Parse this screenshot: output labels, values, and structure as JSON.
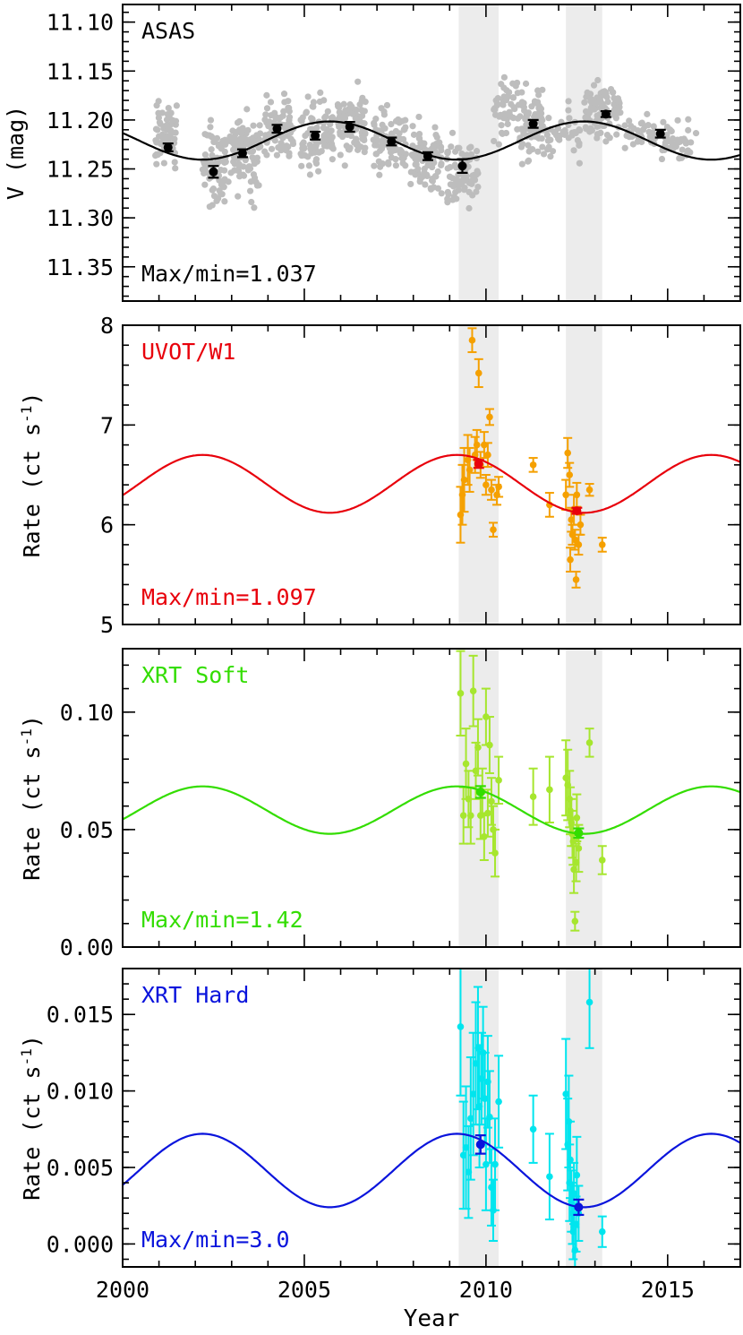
{
  "figure": {
    "xlabel": "Year",
    "xticks": [
      2000,
      2005,
      2010,
      2015
    ],
    "shaded_intervals": [
      [
        2009.25,
        2010.35
      ],
      [
        2012.2,
        2013.2
      ]
    ]
  },
  "chart_data": [
    {
      "type": "scatter",
      "label": "ASAS",
      "ratio_text": "Max/min=1.037",
      "ylabel": "V (mag)",
      "yticks": [
        "11.10",
        "11.15",
        "11.20",
        "11.25",
        "11.30",
        "11.35"
      ],
      "ylim": [
        11.385,
        11.082
      ],
      "xlim": [
        2000,
        2017
      ],
      "colors": {
        "label": "#000000",
        "raw": "#bdbdbd",
        "binned": "#000000",
        "model": "#000000"
      },
      "model": {
        "mean": 11.221,
        "amplitude": 0.0195,
        "period": 7.0,
        "peak_year": 2005.7
      },
      "raw_seasons": [
        {
          "x0": 2000.9,
          "x1": 2001.5,
          "center": 11.215,
          "spread": 0.06,
          "n": 60
        },
        {
          "x0": 2002.2,
          "x1": 2002.85,
          "center": 11.245,
          "spread": 0.075,
          "n": 70
        },
        {
          "x0": 2002.9,
          "x1": 2003.8,
          "center": 11.235,
          "spread": 0.07,
          "n": 90
        },
        {
          "x0": 2003.9,
          "x1": 2004.7,
          "center": 11.21,
          "spread": 0.06,
          "n": 80
        },
        {
          "x0": 2004.9,
          "x1": 2005.8,
          "center": 11.215,
          "spread": 0.06,
          "n": 90
        },
        {
          "x0": 2005.9,
          "x1": 2006.7,
          "center": 11.205,
          "spread": 0.06,
          "n": 90
        },
        {
          "x0": 2006.9,
          "x1": 2007.8,
          "center": 11.22,
          "spread": 0.055,
          "n": 90
        },
        {
          "x0": 2007.9,
          "x1": 2008.8,
          "center": 11.24,
          "spread": 0.06,
          "n": 90
        },
        {
          "x0": 2008.9,
          "x1": 2009.8,
          "center": 11.25,
          "spread": 0.055,
          "n": 80
        },
        {
          "x0": 2010.2,
          "x1": 2010.9,
          "center": 11.19,
          "spread": 0.05,
          "n": 50
        },
        {
          "x0": 2010.9,
          "x1": 2011.6,
          "center": 11.205,
          "spread": 0.06,
          "n": 80
        },
        {
          "x0": 2011.6,
          "x1": 2012.6,
          "center": 11.215,
          "spread": 0.045,
          "n": 40
        },
        {
          "x0": 2012.7,
          "x1": 2013.7,
          "center": 11.19,
          "spread": 0.045,
          "n": 90
        },
        {
          "x0": 2013.8,
          "x1": 2014.7,
          "center": 11.215,
          "spread": 0.025,
          "n": 35
        },
        {
          "x0": 2014.8,
          "x1": 2015.8,
          "center": 11.22,
          "spread": 0.035,
          "n": 40
        }
      ],
      "binned": [
        {
          "x": 2001.25,
          "y": 11.228,
          "err": 0.004
        },
        {
          "x": 2002.5,
          "y": 11.253,
          "err": 0.006
        },
        {
          "x": 2003.3,
          "y": 11.234,
          "err": 0.004
        },
        {
          "x": 2004.25,
          "y": 11.209,
          "err": 0.004
        },
        {
          "x": 2005.3,
          "y": 11.216,
          "err": 0.004
        },
        {
          "x": 2006.25,
          "y": 11.207,
          "err": 0.005
        },
        {
          "x": 2007.4,
          "y": 11.222,
          "err": 0.004
        },
        {
          "x": 2008.4,
          "y": 11.237,
          "err": 0.004
        },
        {
          "x": 2009.35,
          "y": 11.247,
          "err": 0.007
        },
        {
          "x": 2011.3,
          "y": 11.204,
          "err": 0.004
        },
        {
          "x": 2013.3,
          "y": 11.194,
          "err": 0.003
        },
        {
          "x": 2014.8,
          "y": 11.214,
          "err": 0.004
        }
      ]
    },
    {
      "type": "scatter",
      "label": "UVOT/W1",
      "ratio_text": "Max/min=1.097",
      "ylabel": "Rate (ct s",
      "ylabel_sup": "-1",
      "ylabel_end": ")",
      "yticks": [
        "5",
        "6",
        "7",
        "8"
      ],
      "ylim": [
        5,
        8
      ],
      "xlim": [
        2000,
        2017
      ],
      "colors": {
        "label": "#e8000b",
        "raw": "#f5a000",
        "binned": "#e8000b",
        "model": "#e8000b"
      },
      "model": {
        "mean": 6.41,
        "amplitude": 0.29,
        "period": 7.0,
        "peak_year": 2002.2
      },
      "points": [
        {
          "x": 2009.3,
          "y": 6.1,
          "err": 0.28
        },
        {
          "x": 2009.35,
          "y": 6.3,
          "err": 0.3
        },
        {
          "x": 2009.4,
          "y": 6.45,
          "err": 0.32
        },
        {
          "x": 2009.5,
          "y": 6.65,
          "err": 0.25
        },
        {
          "x": 2009.55,
          "y": 6.55,
          "err": 0.22
        },
        {
          "x": 2009.62,
          "y": 7.85,
          "err": 0.12
        },
        {
          "x": 2009.7,
          "y": 6.7,
          "err": 0.18
        },
        {
          "x": 2009.75,
          "y": 6.8,
          "err": 0.15
        },
        {
          "x": 2009.8,
          "y": 7.52,
          "err": 0.14
        },
        {
          "x": 2009.85,
          "y": 6.6,
          "err": 0.13
        },
        {
          "x": 2009.95,
          "y": 6.8,
          "err": 0.13
        },
        {
          "x": 2010.0,
          "y": 6.4,
          "err": 0.1
        },
        {
          "x": 2010.05,
          "y": 6.7,
          "err": 0.12
        },
        {
          "x": 2010.1,
          "y": 7.08,
          "err": 0.08
        },
        {
          "x": 2010.15,
          "y": 6.35,
          "err": 0.1
        },
        {
          "x": 2010.2,
          "y": 5.95,
          "err": 0.07
        },
        {
          "x": 2010.3,
          "y": 6.3,
          "err": 0.1
        },
        {
          "x": 2010.35,
          "y": 6.38,
          "err": 0.1
        },
        {
          "x": 2011.3,
          "y": 6.6,
          "err": 0.07
        },
        {
          "x": 2011.75,
          "y": 6.2,
          "err": 0.12
        },
        {
          "x": 2012.2,
          "y": 6.3,
          "err": 0.15
        },
        {
          "x": 2012.25,
          "y": 6.72,
          "err": 0.15
        },
        {
          "x": 2012.3,
          "y": 6.5,
          "err": 0.12
        },
        {
          "x": 2012.32,
          "y": 5.65,
          "err": 0.12
        },
        {
          "x": 2012.35,
          "y": 6.05,
          "err": 0.12
        },
        {
          "x": 2012.38,
          "y": 5.9,
          "err": 0.1
        },
        {
          "x": 2012.42,
          "y": 6.15,
          "err": 0.15
        },
        {
          "x": 2012.45,
          "y": 5.85,
          "err": 0.1
        },
        {
          "x": 2012.48,
          "y": 5.45,
          "err": 0.08
        },
        {
          "x": 2012.5,
          "y": 6.3,
          "err": 0.12
        },
        {
          "x": 2012.55,
          "y": 5.8,
          "err": 0.1
        },
        {
          "x": 2012.6,
          "y": 6.0,
          "err": 0.1
        },
        {
          "x": 2012.85,
          "y": 6.35,
          "err": 0.06
        },
        {
          "x": 2013.2,
          "y": 5.8,
          "err": 0.07
        }
      ],
      "binned": [
        {
          "x": 2009.8,
          "y": 6.61,
          "err": 0.04
        },
        {
          "x": 2012.5,
          "y": 6.14,
          "err": 0.03
        }
      ]
    },
    {
      "type": "scatter",
      "label": "XRT Soft",
      "ratio_text": "Max/min=1.42",
      "ylabel": "Rate (ct s",
      "ylabel_sup": "-1",
      "ylabel_end": ")",
      "yticks": [
        "0.00",
        "0.05",
        "0.10"
      ],
      "ylim": [
        0,
        0.127
      ],
      "xlim": [
        2000,
        2017
      ],
      "colors": {
        "label": "#33dd00",
        "raw": "#a6e62e",
        "binned": "#33dd00",
        "model": "#33dd00"
      },
      "model": {
        "mean": 0.0583,
        "amplitude": 0.0101,
        "period": 7.0,
        "peak_year": 2002.2
      },
      "points": [
        {
          "x": 2009.3,
          "y": 0.108,
          "err": 0.018
        },
        {
          "x": 2009.38,
          "y": 0.056,
          "err": 0.012
        },
        {
          "x": 2009.45,
          "y": 0.078,
          "err": 0.015
        },
        {
          "x": 2009.52,
          "y": 0.063,
          "err": 0.012
        },
        {
          "x": 2009.58,
          "y": 0.056,
          "err": 0.012
        },
        {
          "x": 2009.65,
          "y": 0.109,
          "err": 0.015
        },
        {
          "x": 2009.72,
          "y": 0.075,
          "err": 0.012
        },
        {
          "x": 2009.78,
          "y": 0.085,
          "err": 0.012
        },
        {
          "x": 2009.85,
          "y": 0.056,
          "err": 0.01
        },
        {
          "x": 2009.9,
          "y": 0.066,
          "err": 0.01
        },
        {
          "x": 2009.95,
          "y": 0.047,
          "err": 0.01
        },
        {
          "x": 2010.0,
          "y": 0.098,
          "err": 0.012
        },
        {
          "x": 2010.05,
          "y": 0.057,
          "err": 0.01
        },
        {
          "x": 2010.1,
          "y": 0.086,
          "err": 0.012
        },
        {
          "x": 2010.15,
          "y": 0.062,
          "err": 0.01
        },
        {
          "x": 2010.2,
          "y": 0.05,
          "err": 0.01
        },
        {
          "x": 2010.25,
          "y": 0.04,
          "err": 0.01
        },
        {
          "x": 2010.35,
          "y": 0.071,
          "err": 0.01
        },
        {
          "x": 2011.3,
          "y": 0.064,
          "err": 0.012
        },
        {
          "x": 2011.75,
          "y": 0.067,
          "err": 0.014
        },
        {
          "x": 2012.2,
          "y": 0.072,
          "err": 0.016
        },
        {
          "x": 2012.25,
          "y": 0.069,
          "err": 0.015
        },
        {
          "x": 2012.3,
          "y": 0.063,
          "err": 0.012
        },
        {
          "x": 2012.32,
          "y": 0.058,
          "err": 0.01
        },
        {
          "x": 2012.35,
          "y": 0.053,
          "err": 0.01
        },
        {
          "x": 2012.38,
          "y": 0.048,
          "err": 0.01
        },
        {
          "x": 2012.4,
          "y": 0.045,
          "err": 0.01
        },
        {
          "x": 2012.42,
          "y": 0.033,
          "err": 0.01
        },
        {
          "x": 2012.45,
          "y": 0.011,
          "err": 0.004
        },
        {
          "x": 2012.48,
          "y": 0.036,
          "err": 0.008
        },
        {
          "x": 2012.5,
          "y": 0.055,
          "err": 0.01
        },
        {
          "x": 2012.55,
          "y": 0.042,
          "err": 0.01
        },
        {
          "x": 2012.85,
          "y": 0.087,
          "err": 0.006
        },
        {
          "x": 2013.2,
          "y": 0.037,
          "err": 0.006
        }
      ],
      "binned": [
        {
          "x": 2009.85,
          "y": 0.066,
          "err": 0.0025
        },
        {
          "x": 2012.55,
          "y": 0.0485,
          "err": 0.002
        }
      ]
    },
    {
      "type": "scatter",
      "label": "XRT Hard",
      "ratio_text": "Max/min=3.0",
      "ylabel": "Rate (ct s",
      "ylabel_sup": "-1",
      "ylabel_end": ")",
      "yticks": [
        "0.000",
        "0.005",
        "0.010",
        "0.015"
      ],
      "ylim": [
        -0.0015,
        0.018
      ],
      "xlim": [
        2000,
        2017
      ],
      "colors": {
        "label": "#0a14dc",
        "raw": "#00e5ee",
        "binned": "#0a14dc",
        "model": "#0a14dc"
      },
      "model": {
        "mean": 0.0048,
        "amplitude": 0.0024,
        "period": 7.0,
        "peak_year": 2002.2
      },
      "points": [
        {
          "x": 2009.3,
          "y": 0.0142,
          "err": 0.0045
        },
        {
          "x": 2009.38,
          "y": 0.0058,
          "err": 0.0035
        },
        {
          "x": 2009.45,
          "y": 0.0063,
          "err": 0.004
        },
        {
          "x": 2009.52,
          "y": 0.0047,
          "err": 0.003
        },
        {
          "x": 2009.58,
          "y": 0.0082,
          "err": 0.004
        },
        {
          "x": 2009.65,
          "y": 0.0098,
          "err": 0.004
        },
        {
          "x": 2009.72,
          "y": 0.0118,
          "err": 0.004
        },
        {
          "x": 2009.78,
          "y": 0.0128,
          "err": 0.004
        },
        {
          "x": 2009.82,
          "y": 0.009,
          "err": 0.004
        },
        {
          "x": 2009.88,
          "y": 0.0108,
          "err": 0.003
        },
        {
          "x": 2009.92,
          "y": 0.0125,
          "err": 0.003
        },
        {
          "x": 2009.97,
          "y": 0.0095,
          "err": 0.003
        },
        {
          "x": 2010.0,
          "y": 0.0052,
          "err": 0.003
        },
        {
          "x": 2010.05,
          "y": 0.0106,
          "err": 0.003
        },
        {
          "x": 2010.1,
          "y": 0.0083,
          "err": 0.003
        },
        {
          "x": 2010.15,
          "y": 0.0037,
          "err": 0.0025
        },
        {
          "x": 2010.2,
          "y": 0.0022,
          "err": 0.002
        },
        {
          "x": 2010.25,
          "y": 0.0052,
          "err": 0.003
        },
        {
          "x": 2010.35,
          "y": 0.0093,
          "err": 0.003
        },
        {
          "x": 2011.3,
          "y": 0.0075,
          "err": 0.0022
        },
        {
          "x": 2011.75,
          "y": 0.0044,
          "err": 0.0028
        },
        {
          "x": 2012.2,
          "y": 0.0098,
          "err": 0.0036
        },
        {
          "x": 2012.25,
          "y": 0.0065,
          "err": 0.003
        },
        {
          "x": 2012.28,
          "y": 0.008,
          "err": 0.003
        },
        {
          "x": 2012.3,
          "y": 0.004,
          "err": 0.0025
        },
        {
          "x": 2012.32,
          "y": 0.0055,
          "err": 0.0025
        },
        {
          "x": 2012.35,
          "y": 0.0028,
          "err": 0.002
        },
        {
          "x": 2012.38,
          "y": 0.002,
          "err": 0.002
        },
        {
          "x": 2012.4,
          "y": 0.0008,
          "err": 0.0018
        },
        {
          "x": 2012.42,
          "y": 0.0033,
          "err": 0.002
        },
        {
          "x": 2012.45,
          "y": -0.0004,
          "err": 0.0015
        },
        {
          "x": 2012.48,
          "y": 0.0013,
          "err": 0.0018
        },
        {
          "x": 2012.5,
          "y": 0.0045,
          "err": 0.0025
        },
        {
          "x": 2012.55,
          "y": 0.002,
          "err": 0.0018
        },
        {
          "x": 2012.85,
          "y": 0.0158,
          "err": 0.003
        },
        {
          "x": 2013.2,
          "y": 0.0008,
          "err": 0.001
        }
      ],
      "binned": [
        {
          "x": 2009.85,
          "y": 0.0065,
          "err": 0.0006
        },
        {
          "x": 2012.55,
          "y": 0.0024,
          "err": 0.0005
        }
      ]
    }
  ]
}
